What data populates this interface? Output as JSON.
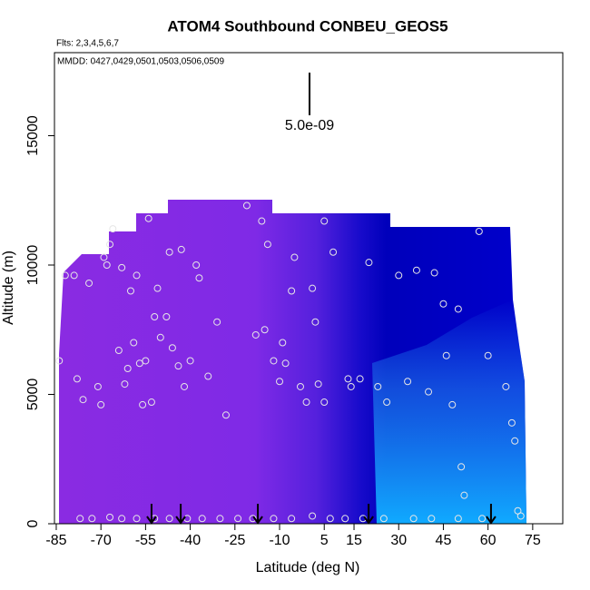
{
  "chart_data": {
    "type": "scatter",
    "title": "ATOM4 Southbound CONBEU_GEOS5",
    "flights_label": "Flts: 2,3,4,5,6,7",
    "dates_label": "MMDD: 0427,0429,0501,0503,0506,0509",
    "scale_label": "5.0e-09",
    "x_label": "Latitude (deg N)",
    "y_label": "Altitude (m)",
    "xlim": [
      -85.6,
      85.1
    ],
    "ylim": [
      0,
      18210
    ],
    "xticks": [
      -85,
      -70,
      -55,
      -40,
      -25,
      -10,
      5,
      15,
      30,
      45,
      60,
      75
    ],
    "yticks": [
      0,
      5000,
      10000,
      15000
    ],
    "point_color": "#e6e6e6",
    "arrow_color": "#000000",
    "profile_latitudes": [
      -53,
      -43.2,
      -17.3,
      19.9,
      61
    ],
    "series": [
      {
        "name": "flight track",
        "x": [
          -84,
          -82,
          -79,
          -78,
          -76,
          -74,
          -71,
          -70,
          -69,
          -68,
          -67,
          -66,
          -64,
          -63,
          -62,
          -61,
          -60,
          -59,
          -58,
          -57,
          -56,
          -55,
          -54,
          -53,
          -52,
          -51,
          -50,
          -48,
          -47,
          -46,
          -44,
          -43,
          -42,
          -40,
          -38,
          -37,
          -34,
          -31,
          -28,
          -21,
          -18,
          -16,
          -15,
          -14,
          -12,
          -10,
          -9,
          -8,
          -6,
          -5,
          -3,
          -1,
          1,
          2,
          3,
          5,
          5,
          8,
          13,
          14,
          17,
          20,
          23,
          26,
          30,
          33,
          36,
          40,
          42,
          45,
          46,
          48,
          50,
          51,
          52,
          57,
          60,
          66,
          68,
          69,
          70,
          71,
          -77,
          -73,
          -67,
          -63,
          -58,
          -52,
          -47,
          -41,
          -36,
          -30,
          -24,
          -19,
          -12,
          -6,
          1,
          7,
          12,
          18,
          25,
          35,
          41,
          50,
          58
        ],
        "y": [
          6300,
          9600,
          9600,
          5600,
          4800,
          9300,
          5300,
          4600,
          10300,
          10000,
          10800,
          11400,
          6700,
          9900,
          5400,
          6000,
          9000,
          7000,
          9600,
          6200,
          4600,
          6300,
          11800,
          4700,
          8000,
          9100,
          7200,
          8000,
          10500,
          6800,
          6100,
          10600,
          5300,
          6300,
          10000,
          9500,
          5700,
          7800,
          4200,
          12300,
          7300,
          11700,
          7500,
          10800,
          6300,
          5500,
          7000,
          6200,
          9000,
          10300,
          5300,
          4700,
          9100,
          7800,
          5400,
          4700,
          11700,
          10500,
          5600,
          5300,
          5600,
          10100,
          5300,
          4700,
          9600,
          5500,
          9800,
          5100,
          9700,
          8500,
          6500,
          4600,
          8300,
          2200,
          1100,
          11300,
          6500,
          5300,
          3900,
          3200,
          500,
          300,
          200,
          200,
          250,
          200,
          200,
          200,
          200,
          200,
          200,
          200,
          200,
          200,
          200,
          200,
          300,
          200,
          200,
          200,
          200,
          200,
          200,
          200,
          200
        ]
      }
    ]
  }
}
